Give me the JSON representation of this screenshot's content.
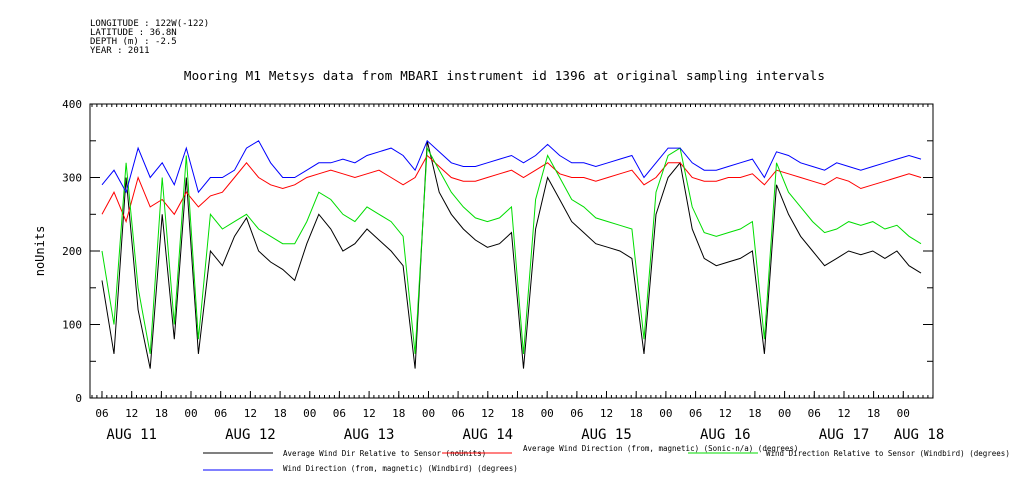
{
  "meta": {
    "longitude": "LONGITUDE : 122W(-122)",
    "latitude": "LATITUDE : 36.8N",
    "depth": "DEPTH (m) : -2.5",
    "year": "YEAR : 2011"
  },
  "chart_data": {
    "type": "line",
    "title": "Mooring M1 Metsys data from MBARI instrument id 1396 at original sampling intervals",
    "ylabel": "noUnits",
    "xlabel": "",
    "ylim": [
      0,
      400
    ],
    "y_ticks": [
      "0",
      "100",
      "200",
      "300",
      "400"
    ],
    "hour_ticks": [
      "06",
      "12",
      "18",
      "00",
      "06",
      "12",
      "18",
      "00",
      "06",
      "12",
      "18",
      "00",
      "06",
      "12",
      "18",
      "00",
      "06",
      "12",
      "18",
      "00",
      "06",
      "12",
      "18",
      "00",
      "06",
      "12",
      "18",
      "00"
    ],
    "date_ticks": [
      "AUG 11",
      "AUG 12",
      "AUG 13",
      "AUG 14",
      "AUG 15",
      "AUG 16",
      "AUG 17",
      "AUG 18"
    ],
    "grid": false,
    "legend_position": "bottom",
    "series": [
      {
        "name": "Average Wind Dir Relative to Sensor (noUnits)",
        "color": "#000000",
        "values": [
          160,
          60,
          300,
          120,
          40,
          250,
          80,
          300,
          60,
          200,
          180,
          220,
          245,
          200,
          185,
          175,
          160,
          210,
          250,
          230,
          200,
          210,
          230,
          215,
          200,
          180,
          40,
          350,
          280,
          250,
          230,
          215,
          205,
          210,
          225,
          40,
          230,
          300,
          270,
          240,
          225,
          210,
          205,
          200,
          190,
          60,
          250,
          300,
          320,
          230,
          190,
          180,
          185,
          190,
          200,
          60,
          290,
          250,
          220,
          200,
          180,
          190,
          200,
          195,
          200,
          190,
          200,
          180,
          170
        ]
      },
      {
        "name": "Average Wind Direction (from, magnetic) (Sonic-n/a) (degrees)",
        "color": "#ff0000",
        "values": [
          250,
          280,
          240,
          300,
          260,
          270,
          250,
          280,
          260,
          275,
          280,
          300,
          320,
          300,
          290,
          285,
          290,
          300,
          305,
          310,
          305,
          300,
          305,
          310,
          300,
          290,
          300,
          330,
          315,
          300,
          295,
          295,
          300,
          305,
          310,
          300,
          310,
          320,
          305,
          300,
          300,
          295,
          300,
          305,
          310,
          290,
          300,
          320,
          320,
          300,
          295,
          295,
          300,
          300,
          305,
          290,
          310,
          305,
          300,
          295,
          290,
          300,
          295,
          285,
          290,
          295,
          300,
          305,
          300
        ]
      },
      {
        "name": "Wind Direction Relative to Sensor (Windbird) (degrees)",
        "color": "#00dd00",
        "values": [
          200,
          100,
          320,
          150,
          60,
          300,
          100,
          330,
          80,
          250,
          230,
          240,
          250,
          230,
          220,
          210,
          210,
          240,
          280,
          270,
          250,
          240,
          260,
          250,
          240,
          220,
          60,
          340,
          310,
          280,
          260,
          245,
          240,
          245,
          260,
          60,
          270,
          330,
          300,
          270,
          260,
          245,
          240,
          235,
          230,
          80,
          280,
          330,
          340,
          260,
          225,
          220,
          225,
          230,
          240,
          80,
          320,
          280,
          260,
          240,
          225,
          230,
          240,
          235,
          240,
          230,
          235,
          220,
          210
        ]
      },
      {
        "name": "Wind Direction (from, magnetic) (Windbird) (degrees)",
        "color": "#0000ff",
        "values": [
          290,
          310,
          280,
          340,
          300,
          320,
          290,
          340,
          280,
          300,
          300,
          310,
          340,
          350,
          320,
          300,
          300,
          310,
          320,
          320,
          325,
          320,
          330,
          335,
          340,
          330,
          310,
          350,
          335,
          320,
          315,
          315,
          320,
          325,
          330,
          320,
          330,
          345,
          330,
          320,
          320,
          315,
          320,
          325,
          330,
          300,
          320,
          340,
          340,
          320,
          310,
          310,
          315,
          320,
          325,
          300,
          335,
          330,
          320,
          315,
          310,
          320,
          315,
          310,
          315,
          320,
          325,
          330,
          325
        ]
      }
    ]
  }
}
